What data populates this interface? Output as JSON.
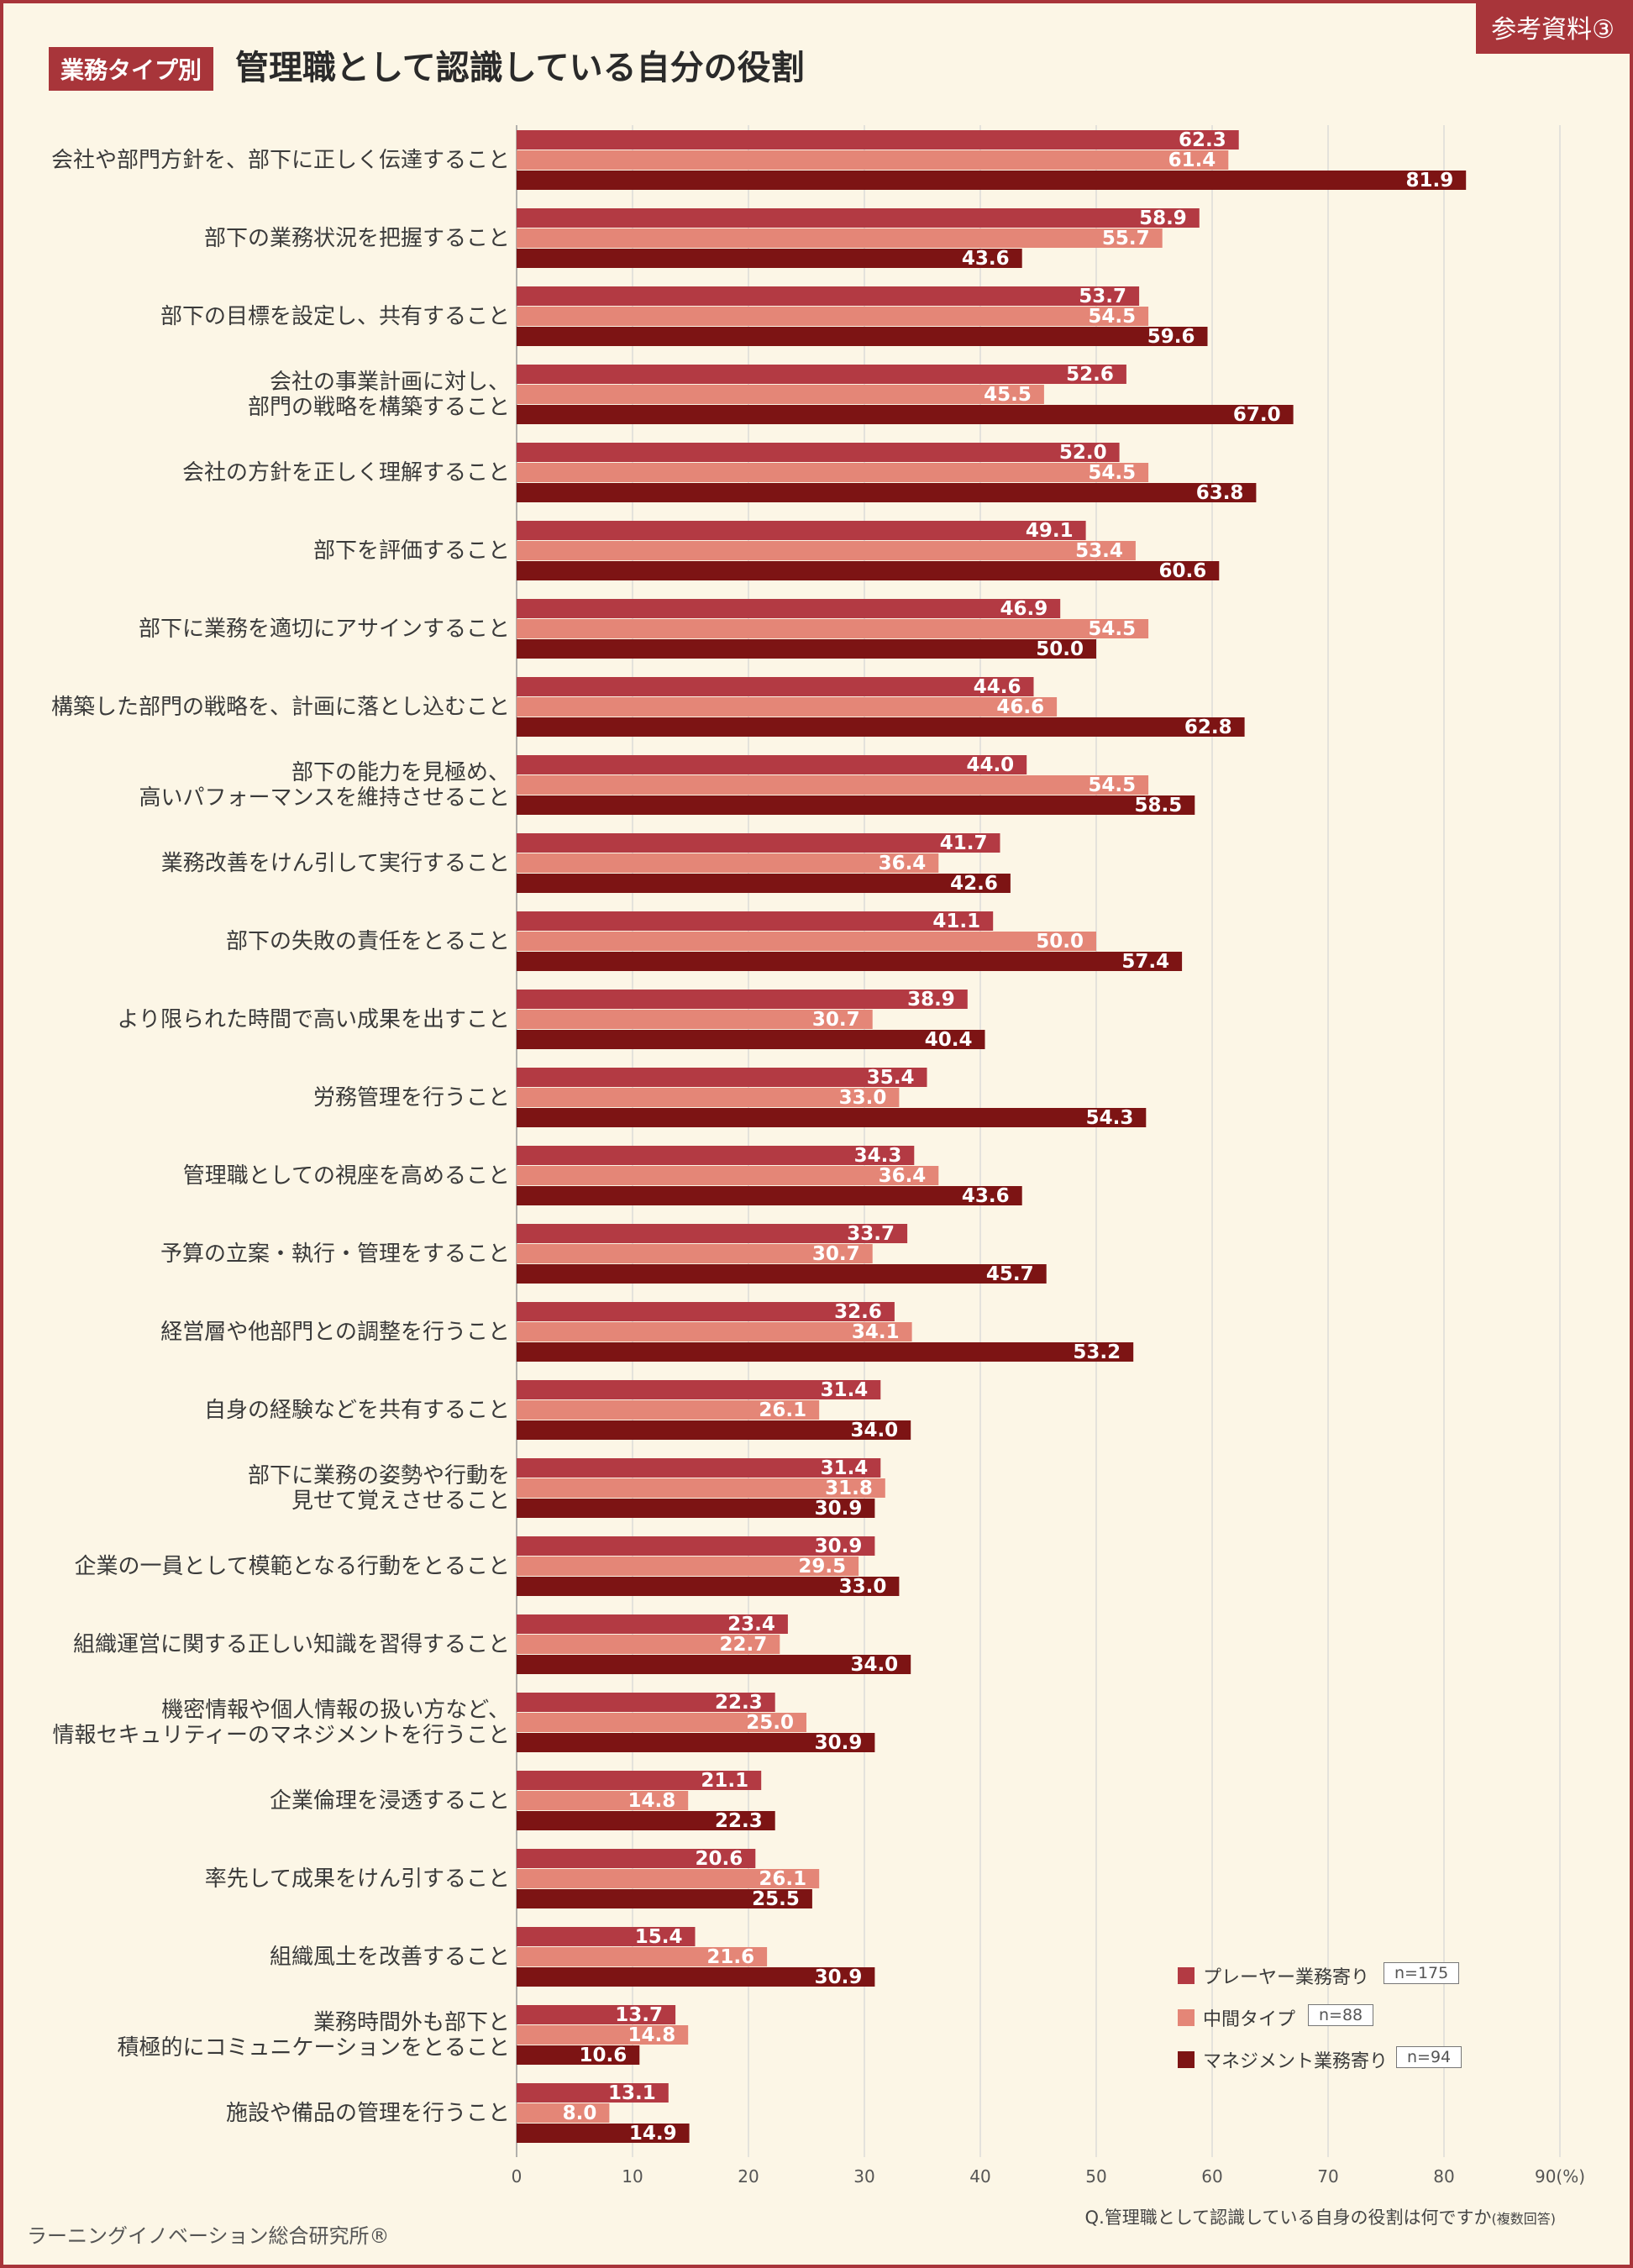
{
  "header": {
    "badge": "参考資料③",
    "category_tag": "業務タイプ別",
    "title": "管理職として認識している自分の役割"
  },
  "footer": {
    "brand": "ラーニングイノベーション総合研究所®",
    "question": "Q.管理職として認識している自身の役割は何ですか",
    "question_note": "(複数回答)"
  },
  "legend": [
    {
      "name": "プレーヤー業務寄り",
      "n": "n=175"
    },
    {
      "name": "中間タイプ",
      "n": "n=88"
    },
    {
      "name": "マネジメント業務寄り",
      "n": "n=94"
    }
  ],
  "colors": {
    "series": [
      "#b33a43",
      "#e48677",
      "#7d1414"
    ],
    "frame": "#a8353a",
    "background": "#fcf6e6",
    "grid": "#d4d4d4"
  },
  "chart_data": {
    "type": "bar",
    "orientation": "horizontal",
    "x_unit": "(%)",
    "xlim": [
      0,
      90
    ],
    "x_ticks": [
      0,
      10,
      20,
      30,
      40,
      50,
      60,
      70,
      80,
      90
    ],
    "grid": true,
    "legend_position": "bottom-right",
    "categories": [
      "会社や部門方針を、部下に正しく伝達すること",
      "部下の業務状況を把握すること",
      "部下の目標を設定し、共有すること",
      "会社の事業計画に対し、\n部門の戦略を構築すること",
      "会社の方針を正しく理解すること",
      "部下を評価すること",
      "部下に業務を適切にアサインすること",
      "構築した部門の戦略を、計画に落とし込むこと",
      "部下の能力を見極め、\n高いパフォーマンスを維持させること",
      "業務改善をけん引して実行すること",
      "部下の失敗の責任をとること",
      "より限られた時間で高い成果を出すこと",
      "労務管理を行うこと",
      "管理職としての視座を高めること",
      "予算の立案・執行・管理をすること",
      "経営層や他部門との調整を行うこと",
      "自身の経験などを共有すること",
      "部下に業務の姿勢や行動を\n見せて覚えさせること",
      "企業の一員として模範となる行動をとること",
      "組織運営に関する正しい知識を習得すること",
      "機密情報や個人情報の扱い方など、\n情報セキュリティーのマネジメントを行うこと",
      "企業倫理を浸透すること",
      "率先して成果をけん引すること",
      "組織風土を改善すること",
      "業務時間外も部下と\n積極的にコミュニケーションをとること",
      "施設や備品の管理を行うこと"
    ],
    "series": [
      {
        "name": "プレーヤー業務寄り",
        "values": [
          62.3,
          58.9,
          53.7,
          52.6,
          52.0,
          49.1,
          46.9,
          44.6,
          44.0,
          41.7,
          41.1,
          38.9,
          35.4,
          34.3,
          33.7,
          32.6,
          31.4,
          31.4,
          30.9,
          23.4,
          22.3,
          21.1,
          20.6,
          15.4,
          13.7,
          13.1
        ]
      },
      {
        "name": "中間タイプ",
        "values": [
          61.4,
          55.7,
          54.5,
          45.5,
          54.5,
          53.4,
          54.5,
          46.6,
          54.5,
          36.4,
          50.0,
          30.7,
          33.0,
          36.4,
          30.7,
          34.1,
          26.1,
          31.8,
          29.5,
          22.7,
          25.0,
          14.8,
          26.1,
          21.6,
          14.8,
          8.0
        ]
      },
      {
        "name": "マネジメント業務寄り",
        "values": [
          81.9,
          43.6,
          59.6,
          67.0,
          63.8,
          60.6,
          50.0,
          62.8,
          58.5,
          42.6,
          57.4,
          40.4,
          54.3,
          43.6,
          45.7,
          53.2,
          34.0,
          30.9,
          33.0,
          34.0,
          30.9,
          22.3,
          25.5,
          30.9,
          10.6,
          14.9
        ]
      }
    ]
  }
}
